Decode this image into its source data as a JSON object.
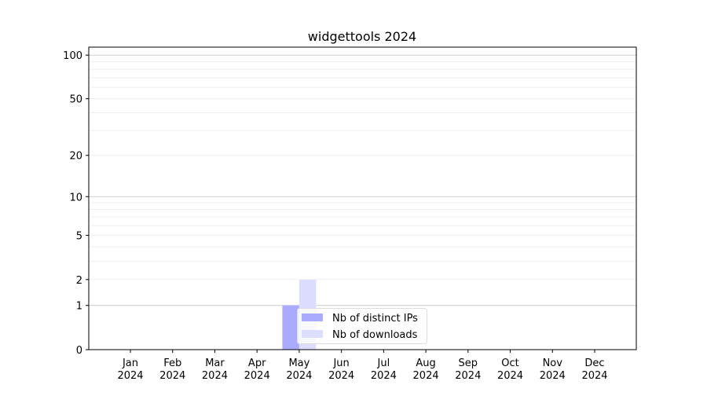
{
  "chart_data": {
    "type": "bar",
    "title": "widgettools 2024",
    "xlabel": "",
    "ylabel": "",
    "y_scale": "log(1+y)",
    "ylim": [
      0,
      113
    ],
    "y_ticks": [
      0,
      1,
      2,
      5,
      10,
      20,
      50,
      100
    ],
    "y_tick_labels": [
      "0",
      "1",
      "2",
      "5",
      "10",
      "20",
      "50",
      "100"
    ],
    "grid": true,
    "categories": [
      "Jan\n2024",
      "Feb\n2024",
      "Mar\n2024",
      "Apr\n2024",
      "May\n2024",
      "Jun\n2024",
      "Jul\n2024",
      "Aug\n2024",
      "Sep\n2024",
      "Oct\n2024",
      "Nov\n2024",
      "Dec\n2024"
    ],
    "category_months": [
      "Jan",
      "Feb",
      "Mar",
      "Apr",
      "May",
      "Jun",
      "Jul",
      "Aug",
      "Sep",
      "Oct",
      "Nov",
      "Dec"
    ],
    "category_year": "2024",
    "series": [
      {
        "name": "Nb of distinct IPs",
        "color": "#aaaaff",
        "values": [
          0,
          0,
          0,
          0,
          1,
          0,
          0,
          0,
          0,
          0,
          0,
          0
        ]
      },
      {
        "name": "Nb of downloads",
        "color": "#ddddff",
        "values": [
          0,
          0,
          0,
          0,
          2,
          0,
          0,
          0,
          0,
          0,
          0,
          0
        ]
      }
    ],
    "legend_placement": "lower center"
  }
}
